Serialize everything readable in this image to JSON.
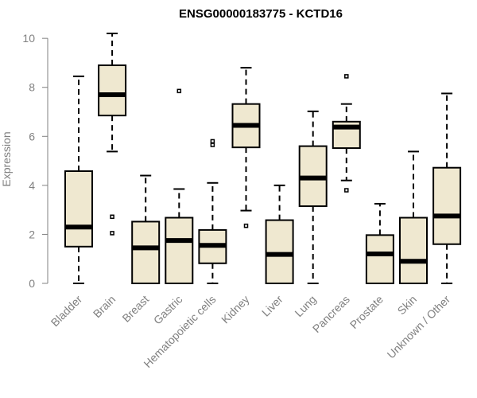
{
  "chart_data": {
    "type": "box",
    "title": "ENSG00000183775 - KCTD16",
    "ylabel": "Expression",
    "xlabel": "",
    "ylim": [
      0,
      10.2
    ],
    "yticks": [
      0,
      2,
      4,
      6,
      8,
      10
    ],
    "grid": false,
    "legend": "none",
    "colors": {
      "box_fill": "#efe8d0",
      "stroke": "#000000",
      "axis": "#808080"
    },
    "categories": [
      "Bladder",
      "Brain",
      "Breast",
      "Gastric",
      "Hematopoietic cells",
      "Kidney",
      "Liver",
      "Lung",
      "Pancreas",
      "Prostate",
      "Skin",
      "Unknown / Other"
    ],
    "boxes": [
      {
        "q1": 1.5,
        "median": 2.3,
        "q3": 4.58,
        "whisker_low": 0.0,
        "whisker_high": 8.45,
        "outliers": []
      },
      {
        "q1": 6.85,
        "median": 7.7,
        "q3": 8.9,
        "whisker_low": 5.38,
        "whisker_high": 10.2,
        "outliers": [
          2.72,
          2.05
        ]
      },
      {
        "q1": 0.0,
        "median": 1.45,
        "q3": 2.52,
        "whisker_low": 0.0,
        "whisker_high": 4.4,
        "outliers": []
      },
      {
        "q1": 0.0,
        "median": 1.75,
        "q3": 2.68,
        "whisker_low": 0.0,
        "whisker_high": 3.85,
        "outliers": [
          7.85
        ]
      },
      {
        "q1": 0.82,
        "median": 1.55,
        "q3": 2.18,
        "whisker_low": 0.0,
        "whisker_high": 4.1,
        "outliers": [
          5.8,
          5.65
        ]
      },
      {
        "q1": 5.55,
        "median": 6.45,
        "q3": 7.32,
        "whisker_low": 2.97,
        "whisker_high": 8.8,
        "outliers": [
          2.35
        ]
      },
      {
        "q1": 0.0,
        "median": 1.18,
        "q3": 2.58,
        "whisker_low": 0.0,
        "whisker_high": 4.0,
        "outliers": []
      },
      {
        "q1": 3.15,
        "median": 4.3,
        "q3": 5.6,
        "whisker_low": 0.0,
        "whisker_high": 7.02,
        "outliers": []
      },
      {
        "q1": 5.52,
        "median": 6.38,
        "q3": 6.6,
        "whisker_low": 4.2,
        "whisker_high": 7.32,
        "outliers": [
          8.45,
          3.8
        ]
      },
      {
        "q1": 0.0,
        "median": 1.2,
        "q3": 1.97,
        "whisker_low": 0.0,
        "whisker_high": 3.25,
        "outliers": []
      },
      {
        "q1": 0.0,
        "median": 0.9,
        "q3": 2.68,
        "whisker_low": 0.0,
        "whisker_high": 5.38,
        "outliers": []
      },
      {
        "q1": 1.6,
        "median": 2.75,
        "q3": 4.72,
        "whisker_low": 0.0,
        "whisker_high": 7.75,
        "outliers": []
      }
    ]
  }
}
